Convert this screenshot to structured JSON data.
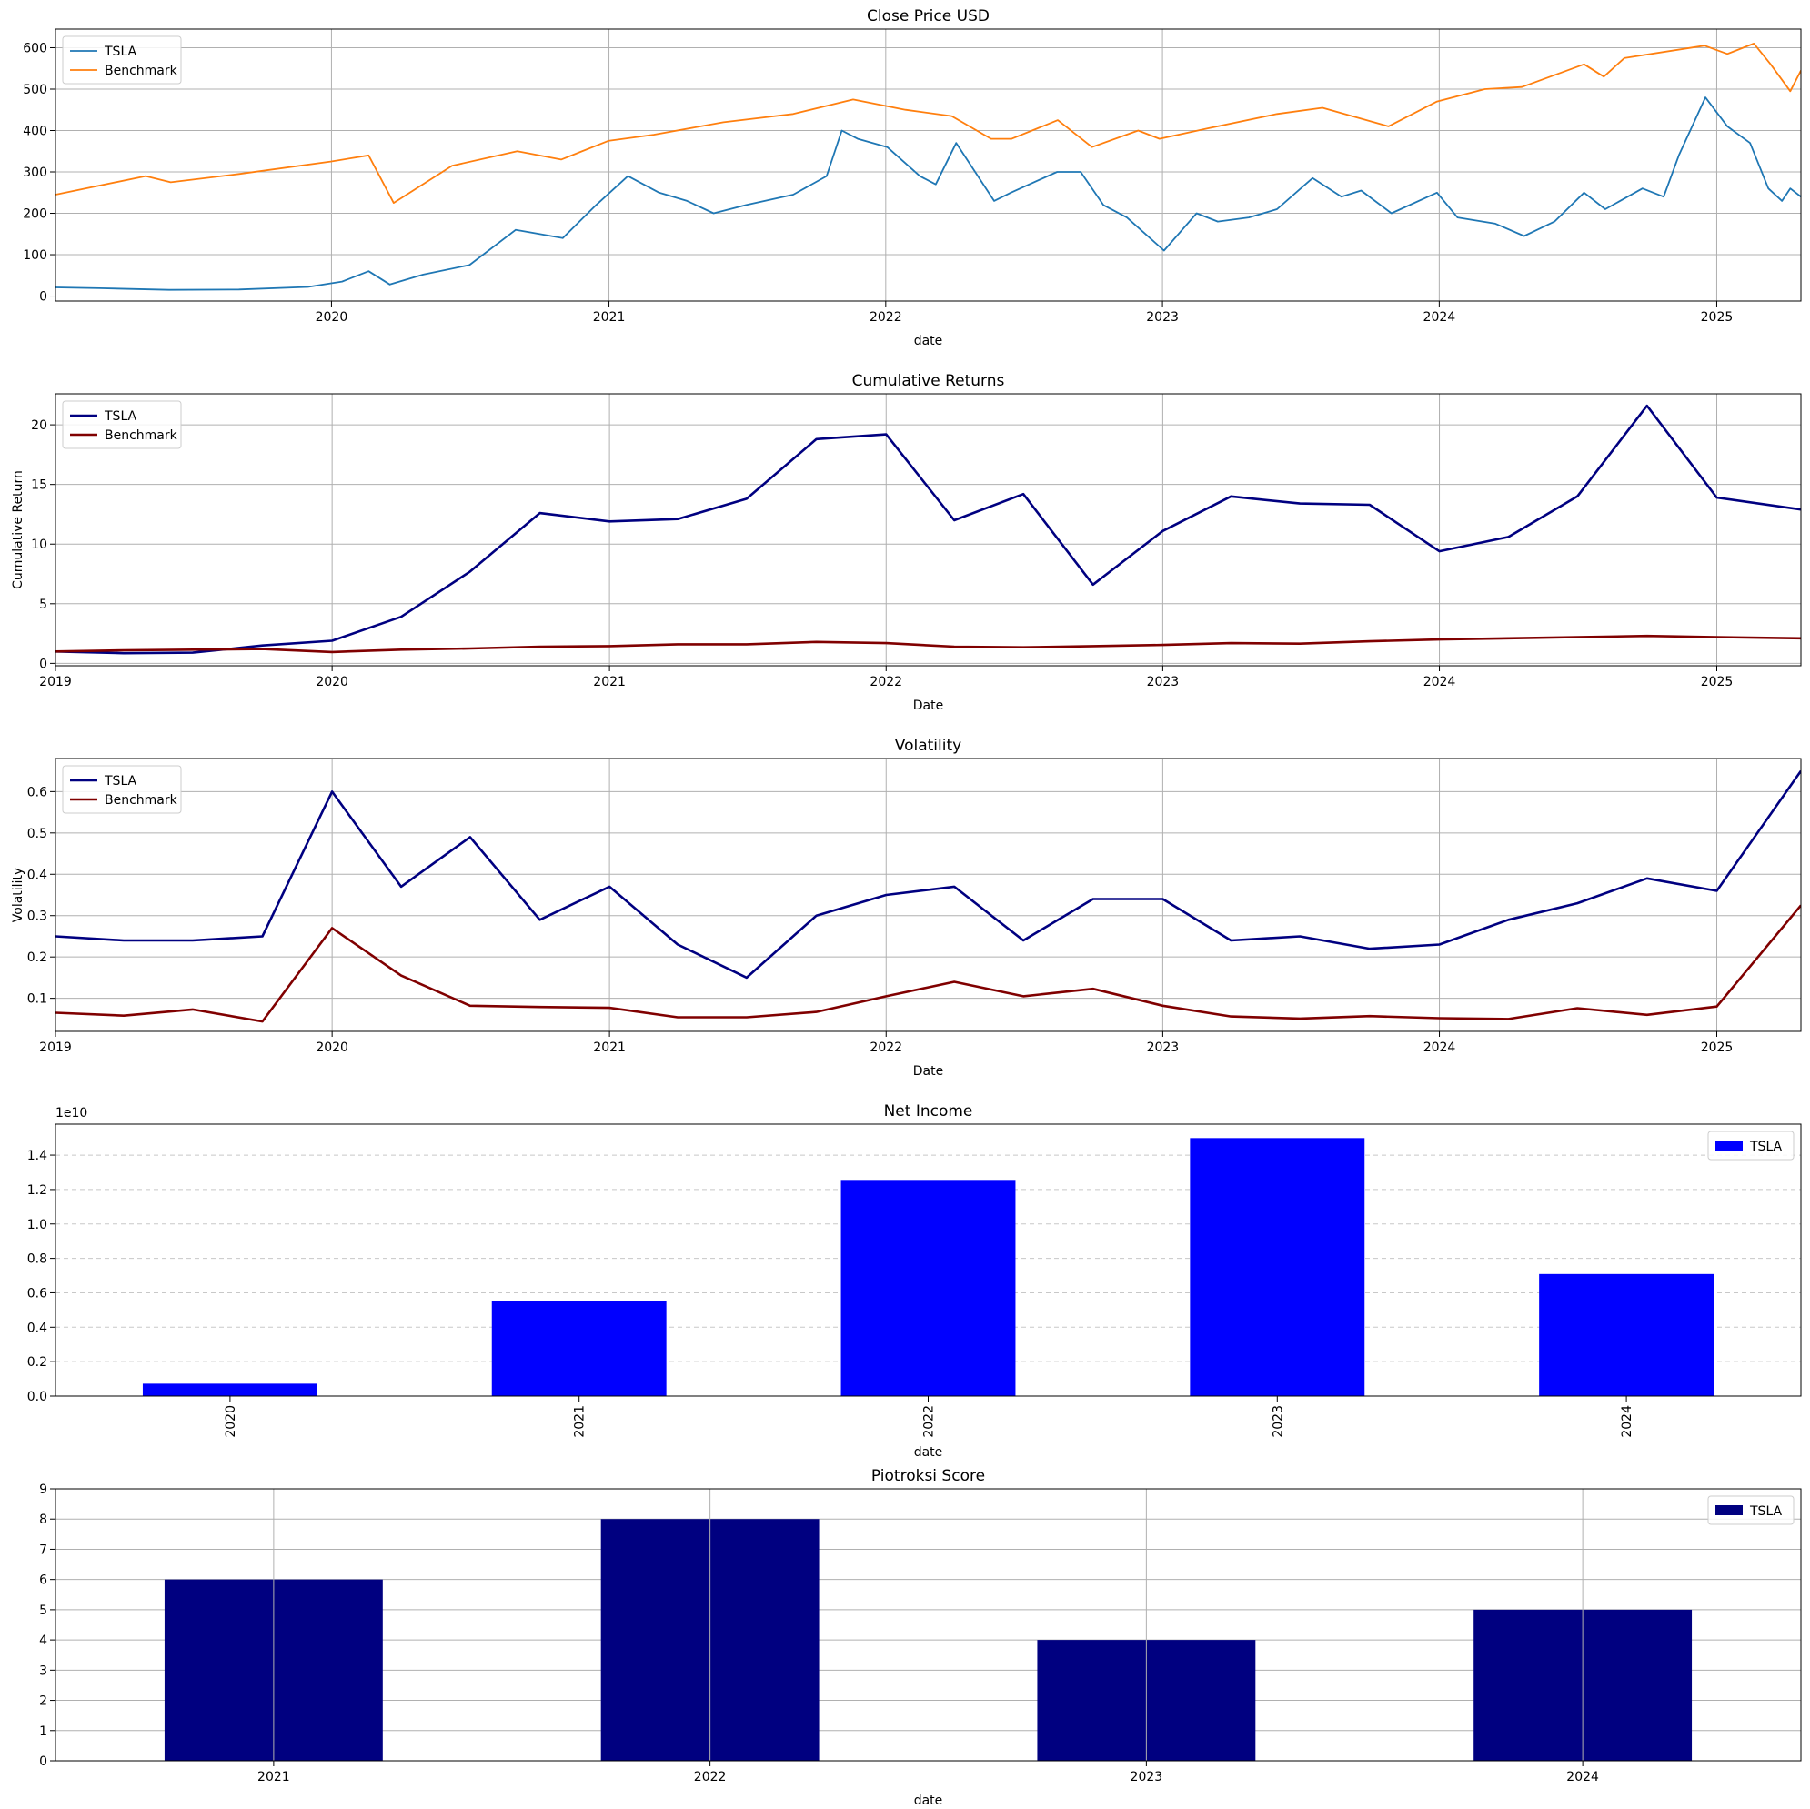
{
  "colors": {
    "tsla_price": "#1f77b4",
    "bench_price": "#ff7f0e",
    "tsla_line": "#000080",
    "bench_line": "#800000",
    "net_income_bar": "#0000ff",
    "piotroski_bar": "#000080",
    "grid": "#b0b0b0"
  },
  "chart_data": [
    {
      "type": "line",
      "title": "Close Price USD",
      "xlabel": "date",
      "ylabel": "",
      "x_ticks": [
        "2020",
        "2021",
        "2022",
        "2023",
        "2024",
        "2025"
      ],
      "x_range": [
        "2019-01-02",
        "2025-04-22"
      ],
      "ylim": [
        -12,
        645
      ],
      "y_ticks": [
        0,
        100,
        200,
        300,
        400,
        500,
        600
      ],
      "grid": true,
      "legend": "top-left",
      "series": [
        {
          "name": "TSLA",
          "x": [
            "2019-01-02",
            "2019-03-01",
            "2019-06-01",
            "2019-09-01",
            "2019-12-01",
            "2020-01-15",
            "2020-02-19",
            "2020-03-18",
            "2020-05-01",
            "2020-07-01",
            "2020-08-31",
            "2020-11-01",
            "2020-12-15",
            "2021-01-26",
            "2021-03-08",
            "2021-04-14",
            "2021-05-19",
            "2021-07-01",
            "2021-09-01",
            "2021-10-15",
            "2021-11-04",
            "2021-11-25",
            "2022-01-03",
            "2022-02-15",
            "2022-03-08",
            "2022-04-04",
            "2022-05-24",
            "2022-06-15",
            "2022-08-15",
            "2022-09-15",
            "2022-10-15",
            "2022-11-15",
            "2023-01-03",
            "2023-02-15",
            "2023-03-15",
            "2023-04-25",
            "2023-06-01",
            "2023-07-18",
            "2023-08-25",
            "2023-09-20",
            "2023-10-30",
            "2023-12-29",
            "2024-01-25",
            "2024-03-15",
            "2024-04-22",
            "2024-06-01",
            "2024-07-10",
            "2024-08-07",
            "2024-09-25",
            "2024-10-23",
            "2024-11-12",
            "2024-12-17",
            "2025-01-15",
            "2025-02-14",
            "2025-03-10",
            "2025-03-28",
            "2025-04-08",
            "2025-04-22"
          ],
          "values": [
            21,
            19,
            15,
            16,
            22,
            35,
            60,
            28,
            52,
            75,
            160,
            140,
            220,
            290,
            250,
            230,
            200,
            220,
            245,
            290,
            400,
            380,
            360,
            290,
            270,
            370,
            230,
            250,
            300,
            300,
            220,
            190,
            110,
            200,
            180,
            190,
            210,
            285,
            240,
            255,
            200,
            250,
            190,
            175,
            145,
            180,
            250,
            210,
            260,
            240,
            340,
            480,
            410,
            370,
            260,
            230,
            260,
            240
          ]
        },
        {
          "name": "Benchmark",
          "x": [
            "2019-01-02",
            "2019-05-01",
            "2019-06-03",
            "2019-09-01",
            "2019-12-31",
            "2020-02-19",
            "2020-03-23",
            "2020-06-08",
            "2020-09-02",
            "2020-10-30",
            "2020-12-31",
            "2021-03-01",
            "2021-06-01",
            "2021-09-01",
            "2021-11-19",
            "2022-01-27",
            "2022-03-29",
            "2022-05-20",
            "2022-06-16",
            "2022-08-16",
            "2022-09-30",
            "2022-11-30",
            "2022-12-28",
            "2023-03-01",
            "2023-06-01",
            "2023-07-31",
            "2023-10-26",
            "2023-12-29",
            "2024-03-01",
            "2024-04-19",
            "2024-07-10",
            "2024-08-05",
            "2024-09-01",
            "2024-12-16",
            "2025-01-15",
            "2025-02-19",
            "2025-03-13",
            "2025-04-08",
            "2025-04-22"
          ],
          "values": [
            245,
            290,
            275,
            295,
            325,
            340,
            225,
            315,
            350,
            330,
            375,
            390,
            420,
            440,
            475,
            450,
            435,
            380,
            380,
            425,
            360,
            400,
            380,
            405,
            440,
            455,
            410,
            470,
            500,
            505,
            560,
            530,
            575,
            605,
            585,
            610,
            560,
            495,
            545
          ]
        }
      ]
    },
    {
      "type": "line",
      "title": "Cumulative Returns",
      "xlabel": "Date",
      "ylabel": "Cumulative Return",
      "x_ticks": [
        "2019",
        "2020",
        "2021",
        "2022",
        "2023",
        "2024",
        "2025"
      ],
      "x_range": [
        "2019-01-01",
        "2025-04-22"
      ],
      "ylim": [
        -0.2,
        22.6
      ],
      "y_ticks": [
        0,
        5,
        10,
        15,
        20
      ],
      "grid": true,
      "legend": "top-left",
      "x": [
        "2019-01-01",
        "2019-04-01",
        "2019-07-01",
        "2019-10-01",
        "2020-01-01",
        "2020-04-01",
        "2020-07-01",
        "2020-10-01",
        "2021-01-01",
        "2021-04-01",
        "2021-07-01",
        "2021-10-01",
        "2022-01-01",
        "2022-04-01",
        "2022-07-01",
        "2022-10-01",
        "2023-01-01",
        "2023-04-01",
        "2023-07-01",
        "2023-10-01",
        "2024-01-01",
        "2024-04-01",
        "2024-07-01",
        "2024-10-01",
        "2025-01-01",
        "2025-04-22"
      ],
      "series": [
        {
          "name": "TSLA",
          "values": [
            1.0,
            0.85,
            0.9,
            1.5,
            1.9,
            3.9,
            7.7,
            12.6,
            11.9,
            12.1,
            13.8,
            18.8,
            19.2,
            12.0,
            14.2,
            6.6,
            11.1,
            14.0,
            13.4,
            13.3,
            9.4,
            10.6,
            14.0,
            21.6,
            13.9,
            12.9
          ]
        },
        {
          "name": "Benchmark",
          "values": [
            1.0,
            1.1,
            1.15,
            1.2,
            0.95,
            1.15,
            1.25,
            1.4,
            1.45,
            1.6,
            1.6,
            1.8,
            1.7,
            1.4,
            1.35,
            1.45,
            1.55,
            1.7,
            1.65,
            1.85,
            2.0,
            2.1,
            2.2,
            2.3,
            2.2,
            2.1
          ]
        }
      ]
    },
    {
      "type": "line",
      "title": "Volatility",
      "xlabel": "Date",
      "ylabel": "Volatility",
      "x_ticks": [
        "2019",
        "2020",
        "2021",
        "2022",
        "2023",
        "2024",
        "2025"
      ],
      "x_range": [
        "2019-01-01",
        "2025-04-22"
      ],
      "ylim": [
        0.02,
        0.68
      ],
      "y_ticks": [
        0.1,
        0.2,
        0.3,
        0.4,
        0.5,
        0.6
      ],
      "grid": true,
      "legend": "top-left",
      "x": [
        "2019-01-01",
        "2019-04-01",
        "2019-07-01",
        "2019-10-01",
        "2020-01-01",
        "2020-04-01",
        "2020-07-01",
        "2020-10-01",
        "2021-01-01",
        "2021-04-01",
        "2021-07-01",
        "2021-10-01",
        "2022-01-01",
        "2022-04-01",
        "2022-07-01",
        "2022-10-01",
        "2023-01-01",
        "2023-04-01",
        "2023-07-01",
        "2023-10-01",
        "2024-01-01",
        "2024-04-01",
        "2024-07-01",
        "2024-10-01",
        "2025-01-01",
        "2025-04-22"
      ],
      "series": [
        {
          "name": "TSLA",
          "values": [
            0.25,
            0.24,
            0.24,
            0.25,
            0.6,
            0.37,
            0.49,
            0.29,
            0.37,
            0.23,
            0.15,
            0.3,
            0.35,
            0.37,
            0.24,
            0.34,
            0.34,
            0.24,
            0.25,
            0.22,
            0.23,
            0.29,
            0.33,
            0.39,
            0.36,
            0.65
          ]
        },
        {
          "name": "Benchmark",
          "values": [
            0.065,
            0.058,
            0.073,
            0.044,
            0.27,
            0.155,
            0.082,
            0.079,
            0.077,
            0.054,
            0.054,
            0.067,
            0.105,
            0.14,
            0.105,
            0.123,
            0.082,
            0.056,
            0.051,
            0.057,
            0.052,
            0.05,
            0.076,
            0.06,
            0.08,
            0.325
          ]
        }
      ]
    },
    {
      "type": "bar",
      "title": "Net Income",
      "xlabel": "date",
      "ylabel": "",
      "offset_label": "1e10",
      "categories": [
        "2020",
        "2021",
        "2022",
        "2023",
        "2024"
      ],
      "y_ticks": [
        "0.0",
        "0.2",
        "0.4",
        "0.6",
        "0.8",
        "1.0",
        "1.2",
        "1.4"
      ],
      "ylim": [
        0,
        15.8
      ],
      "grid": "horizontal dashed",
      "legend": "top-right",
      "series": [
        {
          "name": "TSLA",
          "values": [
            0.72,
            5.52,
            12.56,
            14.99,
            7.09
          ],
          "unit": "1e9 (axis offset 1e10)"
        }
      ]
    },
    {
      "type": "bar",
      "title": "Piotroksi Score",
      "xlabel": "date",
      "ylabel": "",
      "categories": [
        "2021",
        "2022",
        "2023",
        "2024"
      ],
      "ylim": [
        0,
        9
      ],
      "y_ticks": [
        0,
        1,
        2,
        3,
        4,
        5,
        6,
        7,
        8,
        9
      ],
      "grid": true,
      "legend": "top-right",
      "series": [
        {
          "name": "TSLA",
          "values": [
            6,
            8,
            4,
            5
          ]
        }
      ]
    }
  ]
}
